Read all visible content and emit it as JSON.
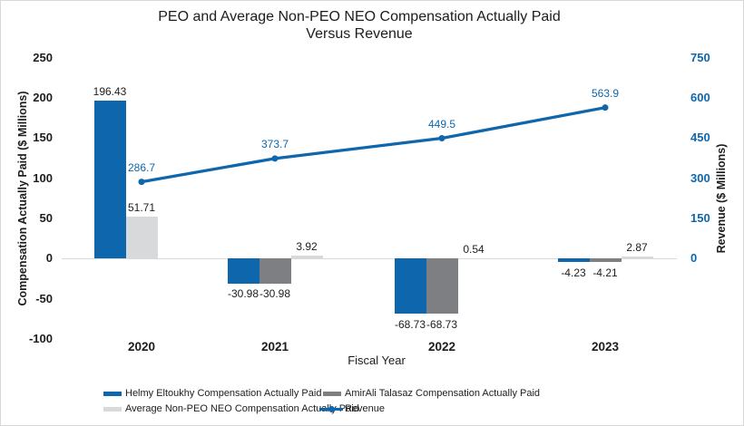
{
  "chart_data": {
    "type": "combo-bar-line",
    "title_lines": [
      "PEO and Average Non-PEO NEO Compensation Actually Paid",
      "Versus Revenue"
    ],
    "categories": [
      "2020",
      "2021",
      "2022",
      "2023"
    ],
    "x_axis_title": "Fiscal Year",
    "colors": {
      "blue": "#0e66ac",
      "dark_gray": "#7d7f82",
      "light_gray": "#d8d9db",
      "gridline": "#d9d9d9",
      "text": "#1d1d1d"
    },
    "left_axis": {
      "title": "Compensation Actually Paid ($ Millions)",
      "ticks": [
        "250",
        "200",
        "150",
        "100",
        "50",
        "0",
        "-50",
        "-100"
      ],
      "tick_values": [
        250,
        200,
        150,
        100,
        50,
        0,
        -50,
        -100
      ],
      "max": 250,
      "min": -100,
      "grid": "zero-line-only"
    },
    "right_axis": {
      "title": "Revenue ($ Millions)",
      "ticks": [
        "750",
        "600",
        "450",
        "300",
        "150",
        "0"
      ],
      "tick_values": [
        750,
        600,
        450,
        300,
        150,
        0
      ],
      "max": 750,
      "min_labeled": 0
    },
    "bar_series": [
      {
        "name": "Helmy Eltoukhy Compensation Actually Paid",
        "color": "#0e66ac",
        "points": [
          {
            "year": "2020",
            "value": 196.43,
            "label": "196.43",
            "slot": 0
          },
          {
            "year": "2021",
            "value": -30.98,
            "label": "-30.98",
            "slot": 0
          },
          {
            "year": "2022",
            "value": -68.73,
            "label": "-68.73",
            "slot": 0
          },
          {
            "year": "2023",
            "value": -4.23,
            "label": "-4.23",
            "slot": 0
          }
        ]
      },
      {
        "name": "AmirAli Talasaz Compensation Actually Paid",
        "color": "#7d7f82",
        "points": [
          {
            "year": "2021",
            "value": -30.98,
            "label": "-30.98",
            "slot": 1
          },
          {
            "year": "2022",
            "value": -68.73,
            "label": "-68.73",
            "slot": 1
          },
          {
            "year": "2023",
            "value": -4.21,
            "label": "-4.21",
            "slot": 1
          }
        ]
      },
      {
        "name": "Average Non-PEO NEO Compensation Actually Paid",
        "color": "#d8d9db",
        "points": [
          {
            "year": "2020",
            "value": 51.71,
            "label": "51.71",
            "slot": 1
          },
          {
            "year": "2021",
            "value": 3.92,
            "label": "3.92",
            "slot": 2
          },
          {
            "year": "2022",
            "value": 0.54,
            "label": "0.54",
            "slot": 2
          },
          {
            "year": "2023",
            "value": 2.87,
            "label": "2.87",
            "slot": 2
          }
        ]
      }
    ],
    "line_series": {
      "name": "Revenue",
      "color": "#0e66ac",
      "points": [
        {
          "year": "2020",
          "value": 286.7,
          "label": "286.7"
        },
        {
          "year": "2021",
          "value": 373.7,
          "label": "373.7"
        },
        {
          "year": "2022",
          "value": 449.5,
          "label": "449.5"
        },
        {
          "year": "2023",
          "value": 563.9,
          "label": "563.9"
        }
      ]
    },
    "legend": [
      {
        "type": "bar",
        "label": "Helmy Eltoukhy Compensation Actually Paid",
        "color": "#0e66ac"
      },
      {
        "type": "bar",
        "label": "AmirAli Talasaz Compensation Actually Paid",
        "color": "#7d7f82"
      },
      {
        "type": "bar",
        "label": "Average Non-PEO NEO Compensation Actually Paid",
        "color": "#d8d9db"
      },
      {
        "type": "line",
        "label": "Revenue",
        "color": "#0e66ac"
      }
    ]
  }
}
